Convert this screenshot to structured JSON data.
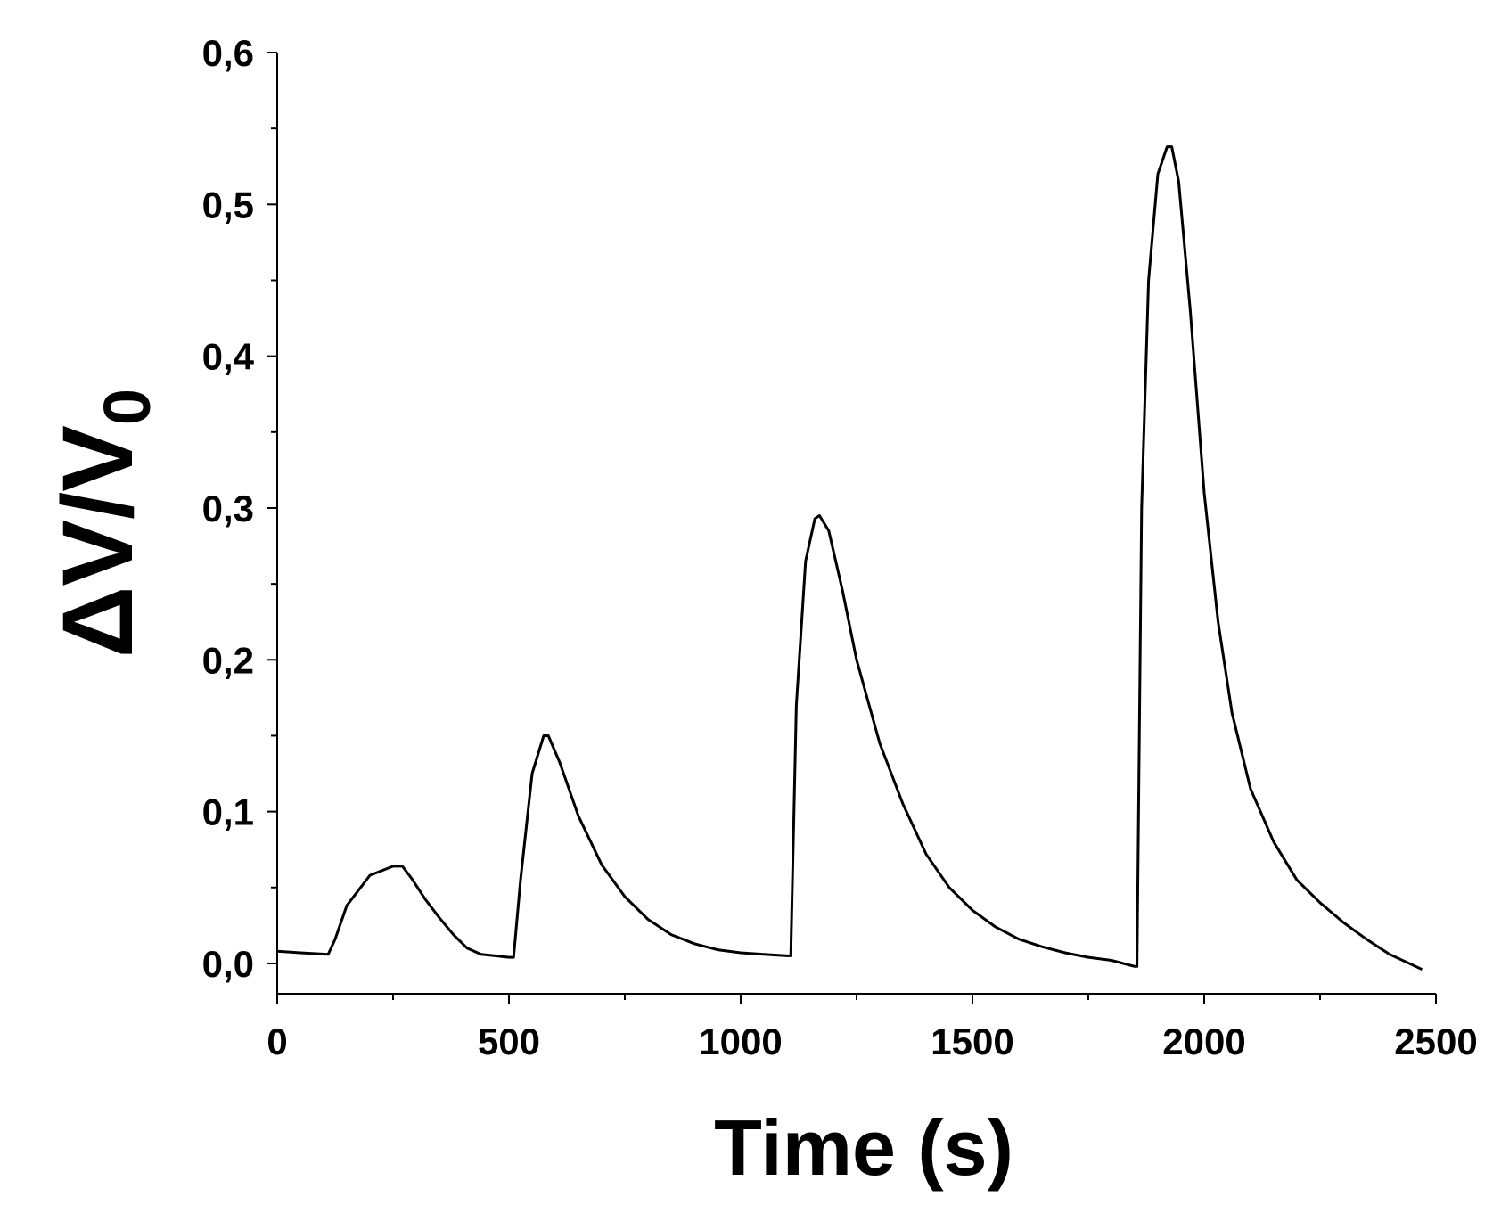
{
  "chart_data": {
    "type": "line",
    "title": "",
    "xlabel": "Time (s)",
    "ylabel_main": "ΔV/V",
    "ylabel_subscript": "0",
    "xlim": [
      0,
      2500
    ],
    "ylim": [
      -0.02,
      0.6
    ],
    "x_ticks": [
      0,
      500,
      1000,
      1500,
      2000,
      2500
    ],
    "x_tick_labels": [
      "0",
      "500",
      "1000",
      "1500",
      "2000",
      "2500"
    ],
    "y_ticks": [
      0.0,
      0.1,
      0.2,
      0.3,
      0.4,
      0.5,
      0.6
    ],
    "y_tick_labels": [
      "0,0",
      "0,1",
      "0,2",
      "0,3",
      "0,4",
      "0,5",
      "0,6"
    ],
    "grid": false,
    "line_color": "#000000",
    "series": [
      {
        "x": [
          0,
          50,
          110,
          125,
          150,
          200,
          250,
          270,
          290,
          320,
          350,
          380,
          410,
          440,
          470,
          500,
          510,
          525,
          550,
          575,
          585,
          610,
          650,
          700,
          750,
          800,
          850,
          900,
          950,
          1000,
          1050,
          1100,
          1108,
          1120,
          1140,
          1160,
          1170,
          1190,
          1220,
          1250,
          1300,
          1350,
          1400,
          1450,
          1500,
          1550,
          1600,
          1650,
          1700,
          1750,
          1800,
          1850,
          1855,
          1865,
          1880,
          1900,
          1920,
          1930,
          1945,
          1970,
          2000,
          2030,
          2060,
          2100,
          2150,
          2200,
          2250,
          2300,
          2350,
          2400,
          2470
        ],
        "y": [
          0.008,
          0.007,
          0.006,
          0.016,
          0.038,
          0.058,
          0.064,
          0.064,
          0.056,
          0.042,
          0.03,
          0.019,
          0.01,
          0.006,
          0.005,
          0.004,
          0.004,
          0.055,
          0.125,
          0.15,
          0.15,
          0.132,
          0.097,
          0.065,
          0.044,
          0.029,
          0.019,
          0.013,
          0.009,
          0.007,
          0.006,
          0.005,
          0.005,
          0.17,
          0.265,
          0.293,
          0.295,
          0.285,
          0.245,
          0.2,
          0.145,
          0.105,
          0.072,
          0.05,
          0.035,
          0.024,
          0.016,
          0.011,
          0.007,
          0.004,
          0.002,
          -0.002,
          -0.002,
          0.3,
          0.45,
          0.52,
          0.538,
          0.538,
          0.515,
          0.43,
          0.31,
          0.225,
          0.165,
          0.115,
          0.08,
          0.055,
          0.04,
          0.027,
          0.016,
          0.006,
          -0.004
        ]
      }
    ]
  }
}
